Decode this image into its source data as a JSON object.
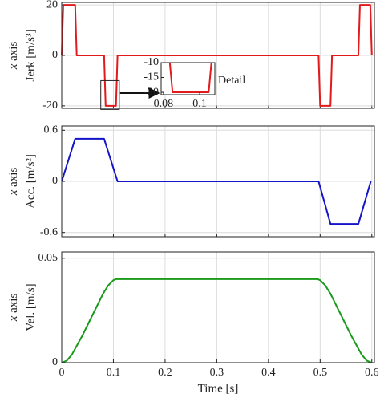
{
  "chart_data": [
    {
      "type": "line",
      "ylabel": [
        "x axis",
        "Jerk [m/s³]"
      ],
      "color": "#e31a1c",
      "x": [
        0,
        0.003,
        0.026,
        0.029,
        0.082,
        0.085,
        0.105,
        0.108,
        0.497,
        0.5,
        0.52,
        0.523,
        0.574,
        0.577,
        0.597,
        0.6
      ],
      "values": [
        0,
        20,
        20,
        0,
        0,
        -20,
        -20,
        0,
        0,
        -20,
        -20,
        0,
        0,
        20,
        20,
        0
      ],
      "xlim": [
        0,
        0.605
      ],
      "xticks": [
        0,
        0.1,
        0.2,
        0.3,
        0.4,
        0.5,
        0.6
      ],
      "show_xtick_labels": false,
      "ylim": [
        -21,
        21
      ],
      "yticks": [
        -20,
        0,
        20
      ],
      "grid": true,
      "inset": {
        "xlim": [
          0.0787,
          0.1084
        ],
        "ylim": [
          -20.8,
          -10
        ],
        "xticks": [
          0.08,
          0.1
        ],
        "yticks": [
          -20,
          -15,
          -10
        ],
        "annotation": "Detail"
      }
    },
    {
      "type": "line",
      "ylabel": [
        "x axis",
        "Acc. [m/s²]"
      ],
      "color": "#1414c8",
      "x": [
        0,
        0.026,
        0.082,
        0.108,
        0.497,
        0.52,
        0.574,
        0.598
      ],
      "values": [
        0,
        0.5,
        0.5,
        0,
        0,
        -0.5,
        -0.5,
        0
      ],
      "xlim": [
        0,
        0.605
      ],
      "xticks": [
        0,
        0.1,
        0.2,
        0.3,
        0.4,
        0.5,
        0.6
      ],
      "show_xtick_labels": false,
      "ylim": [
        -0.65,
        0.65
      ],
      "yticks": [
        -0.6,
        0,
        0.6
      ],
      "grid": true
    },
    {
      "type": "line",
      "ylabel": [
        "x axis",
        "Vel. [m/s]"
      ],
      "xlabel": "Time [s]",
      "color": "#1a9a1a",
      "x": [
        0,
        0.01,
        0.02,
        0.03,
        0.04,
        0.05,
        0.06,
        0.07,
        0.08,
        0.09,
        0.1,
        0.105,
        0.495,
        0.5,
        0.51,
        0.52,
        0.53,
        0.54,
        0.55,
        0.56,
        0.57,
        0.58,
        0.59,
        0.6
      ],
      "values": [
        0,
        0.001,
        0.004,
        0.0085,
        0.013,
        0.018,
        0.023,
        0.028,
        0.033,
        0.037,
        0.0395,
        0.04,
        0.04,
        0.0395,
        0.037,
        0.033,
        0.028,
        0.023,
        0.018,
        0.013,
        0.0085,
        0.004,
        0.001,
        0
      ],
      "xlim": [
        0,
        0.605
      ],
      "xticks": [
        0,
        0.1,
        0.2,
        0.3,
        0.4,
        0.5,
        0.6
      ],
      "show_xtick_labels": true,
      "ylim": [
        0,
        0.053
      ],
      "yticks": [
        0,
        0.05
      ],
      "grid": true
    }
  ]
}
